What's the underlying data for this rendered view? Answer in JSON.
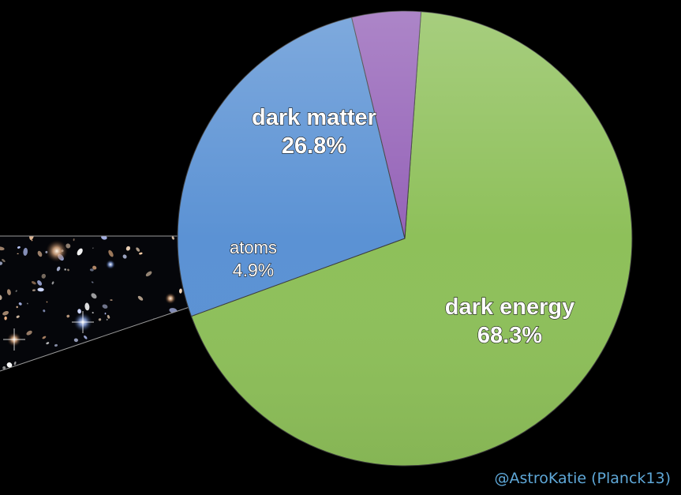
{
  "chart_data": {
    "type": "pie",
    "slices": [
      {
        "name": "dark energy",
        "value": 68.3,
        "value_label": "68.3%",
        "color": "#8ec05a"
      },
      {
        "name": "dark matter",
        "value": 26.8,
        "value_label": "26.8%",
        "color": "#5b92d4"
      },
      {
        "name": "atoms",
        "value": 4.9,
        "value_label": "4.9%",
        "color": "#9563b8"
      }
    ],
    "legend": "none",
    "exploded_image": "deep-field-galaxies"
  },
  "credit": "@AstroKatie (Planck13)",
  "colors": {
    "background": "#000000",
    "credit": "#5fa8d8",
    "label_text": "#ffffff"
  }
}
